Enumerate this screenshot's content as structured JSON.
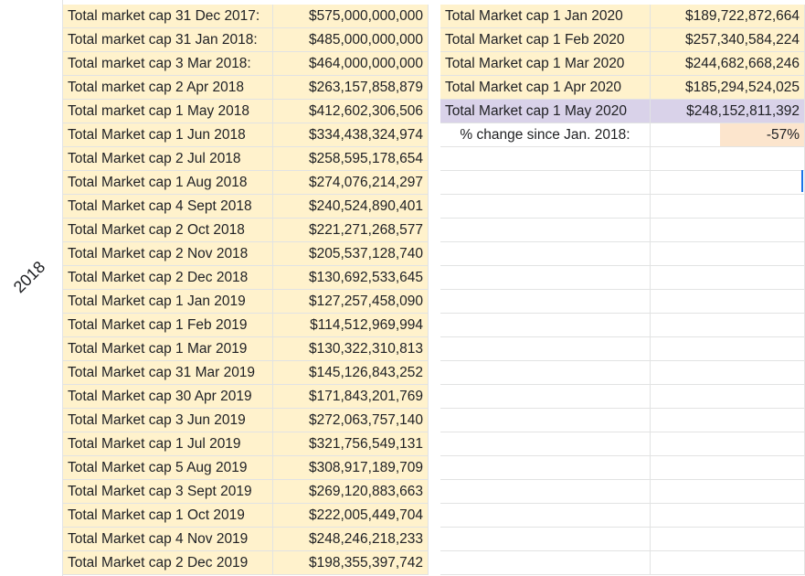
{
  "row_group_label": "2018",
  "table1": [
    {
      "label": "Total market cap 31 Dec 2017:",
      "value": "$575,000,000,000"
    },
    {
      "label": "Total market cap 31 Jan 2018:",
      "value": "$485,000,000,000"
    },
    {
      "label": "Total market cap 3 Mar 2018:",
      "value": "$464,000,000,000"
    },
    {
      "label": "Total market cap 2 Apr 2018",
      "value": "$263,157,858,879"
    },
    {
      "label": "Total market cap 1 May 2018",
      "value": "$412,602,306,506"
    },
    {
      "label": "Total Market cap 1 Jun 2018",
      "value": "$334,438,324,974"
    },
    {
      "label": "Total Market cap 2 Jul 2018",
      "value": "$258,595,178,654"
    },
    {
      "label": "Total Market cap 1 Aug 2018",
      "value": "$274,076,214,297"
    },
    {
      "label": "Total Market cap 4 Sept 2018",
      "value": "$240,524,890,401"
    },
    {
      "label": "Total Market cap 2 Oct 2018",
      "value": "$221,271,268,577"
    },
    {
      "label": "Total Market cap 2 Nov 2018",
      "value": "$205,537,128,740"
    },
    {
      "label": "Total Market cap 2 Dec 2018",
      "value": "$130,692,533,645"
    },
    {
      "label": "Total Market cap 1 Jan 2019",
      "value": "$127,257,458,090"
    },
    {
      "label": "Total Market cap 1 Feb 2019",
      "value": "$114,512,969,994"
    },
    {
      "label": "Total Market cap 1 Mar 2019",
      "value": "$130,322,310,813"
    },
    {
      "label": "Total Market cap 31 Mar 2019",
      "value": "$145,126,843,252"
    },
    {
      "label": "Total Market cap 30 Apr 2019",
      "value": "$171,843,201,769"
    },
    {
      "label": "Total Market cap 3 Jun 2019",
      "value": "$272,063,757,140"
    },
    {
      "label": "Total Market cap 1 Jul 2019",
      "value": "$321,756,549,131"
    },
    {
      "label": "Total Market cap 5 Aug 2019",
      "value": "$308,917,189,709"
    },
    {
      "label": "Total Market cap 3 Sept 2019",
      "value": "$269,120,883,663"
    },
    {
      "label": "Total Market cap 1 Oct 2019",
      "value": "$222,005,449,704"
    },
    {
      "label": "Total Market cap 4 Nov 2019",
      "value": "$248,246,218,233"
    },
    {
      "label": "Total Market cap 2 Dec 2019",
      "value": "$198,355,397,742"
    }
  ],
  "table2": [
    {
      "label": "Total Market cap 1 Jan 2020",
      "value": "$189,722,872,664"
    },
    {
      "label": "Total Market cap 1 Feb 2020",
      "value": "$257,340,584,224"
    },
    {
      "label": "Total Market cap 1 Mar 2020",
      "value": "$244,682,668,246"
    },
    {
      "label": "Total Market cap 1 Apr 2020",
      "value": "$185,294,524,025"
    },
    {
      "label": "Total Market cap 1 May 2020",
      "value": "$248,152,811,392"
    }
  ],
  "summary": {
    "label": "% change since Jan. 2018:",
    "value": "-57%"
  },
  "colors": {
    "yellow": "#fff2cc",
    "purple": "#d9d2e9",
    "peach": "#fce5cd",
    "grid": "#e2e3e3"
  }
}
